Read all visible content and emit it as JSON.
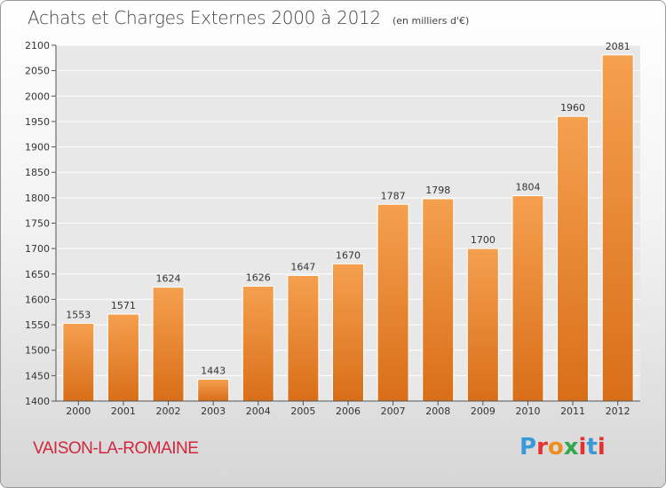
{
  "header": {
    "title": "Achats et Charges Externes 2000 à 2012",
    "unit": "(en milliers d'€)"
  },
  "footer": {
    "location": "VAISON-LA-ROMAINE",
    "logo_letters": [
      "P",
      "r",
      "o",
      "x",
      "i",
      "t",
      "i"
    ],
    "logo_colors": [
      "#3a9ad9",
      "#e6322f",
      "#f08c1e",
      "#2fa84f",
      "#e6322f",
      "#3a9ad9",
      "#e6322f"
    ]
  },
  "colors": {
    "bar_light": "#f5a04f",
    "bar_dark": "#d96e18",
    "grid": "#ffffff",
    "axis_text": "#333333"
  },
  "chart_data": {
    "type": "bar",
    "title": "Achats et Charges Externes 2000 à 2012",
    "subtitle": "(en milliers d'€)",
    "xlabel": "",
    "ylabel": "",
    "categories": [
      "2000",
      "2001",
      "2002",
      "2003",
      "2004",
      "2005",
      "2006",
      "2007",
      "2008",
      "2009",
      "2010",
      "2011",
      "2012"
    ],
    "values": [
      1553,
      1571,
      1624,
      1443,
      1626,
      1647,
      1670,
      1787,
      1798,
      1700,
      1804,
      1960,
      2081
    ],
    "ylim": [
      1400,
      2100
    ],
    "yticks": [
      1400,
      1450,
      1500,
      1550,
      1600,
      1650,
      1700,
      1750,
      1800,
      1850,
      1900,
      1950,
      2000,
      2050,
      2100
    ],
    "grid": true,
    "data_labels": true
  }
}
